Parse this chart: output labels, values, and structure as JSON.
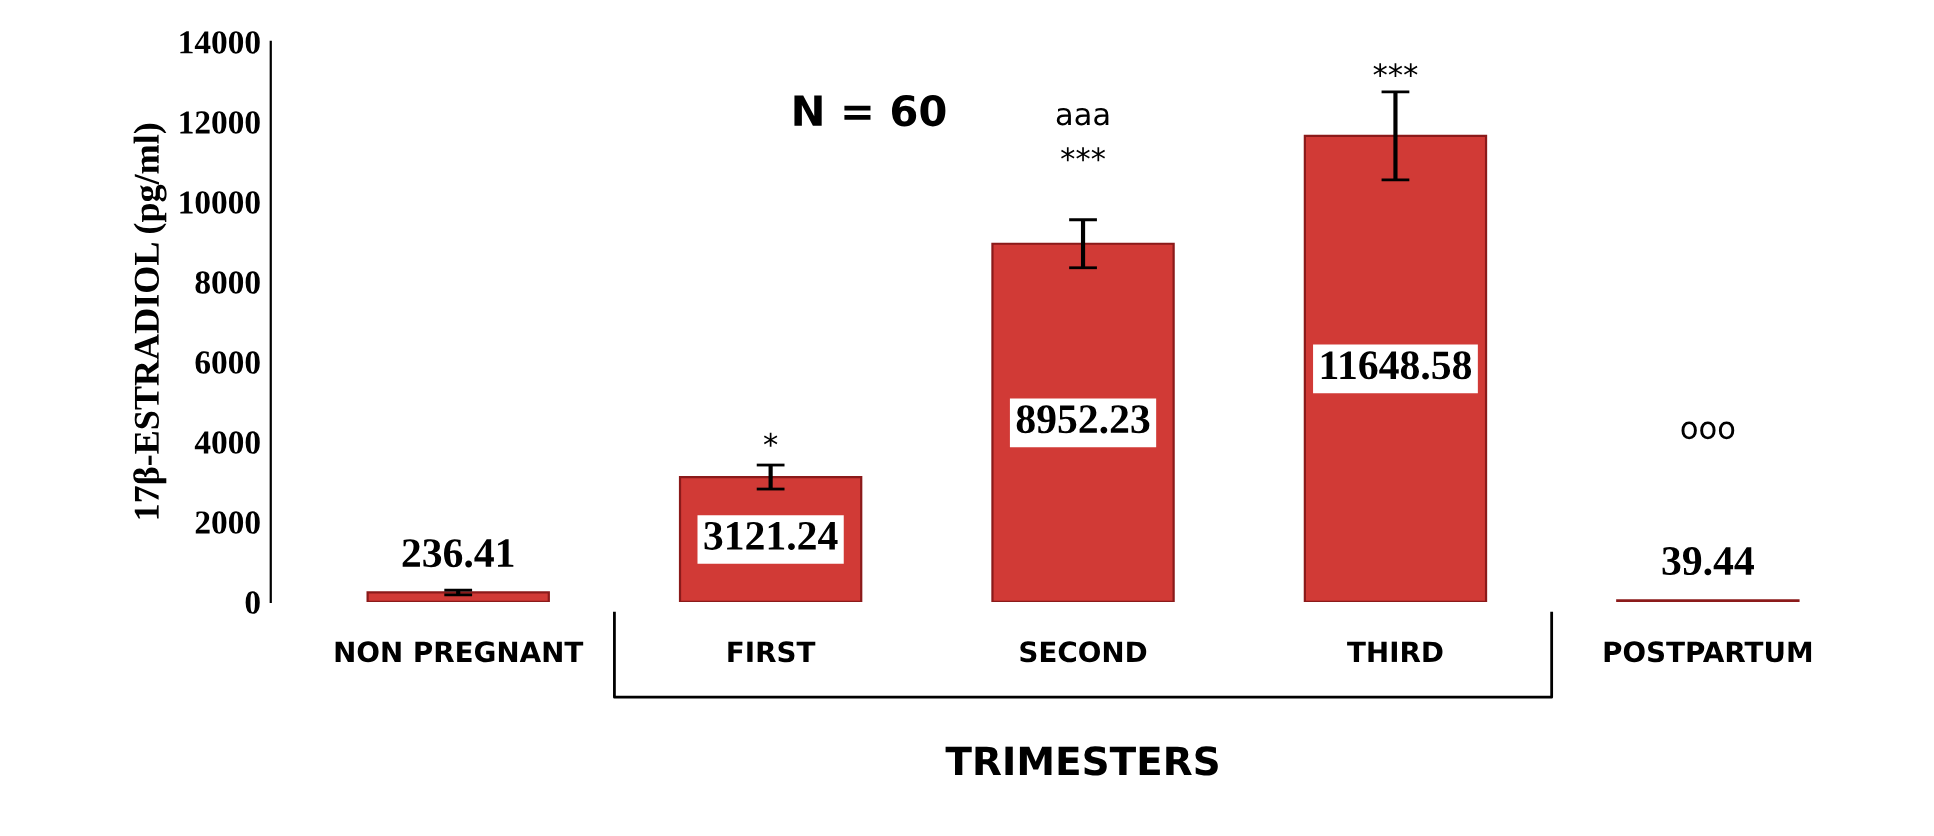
{
  "chart_data": {
    "type": "bar",
    "ylabel": "17β-ESTRADIOL (pg/ml)",
    "xlabel": "TRIMESTERS",
    "categories": [
      "NON PREGNANT",
      "FIRST",
      "SECOND",
      "THIRD",
      "POSTPARTUM"
    ],
    "values": [
      236.41,
      3121.24,
      8952.23,
      11648.58,
      39.44
    ],
    "errors": [
      60,
      300,
      600,
      1100,
      null
    ],
    "color": "#d13a36",
    "ylim": [
      0,
      14000
    ],
    "yticks": [
      0,
      2000,
      4000,
      6000,
      8000,
      10000,
      12000,
      14000
    ],
    "grid": false,
    "data_labels": true,
    "annotations": [
      "N = 60",
      "*",
      "***",
      "aaa",
      "***",
      "ooo"
    ]
  }
}
